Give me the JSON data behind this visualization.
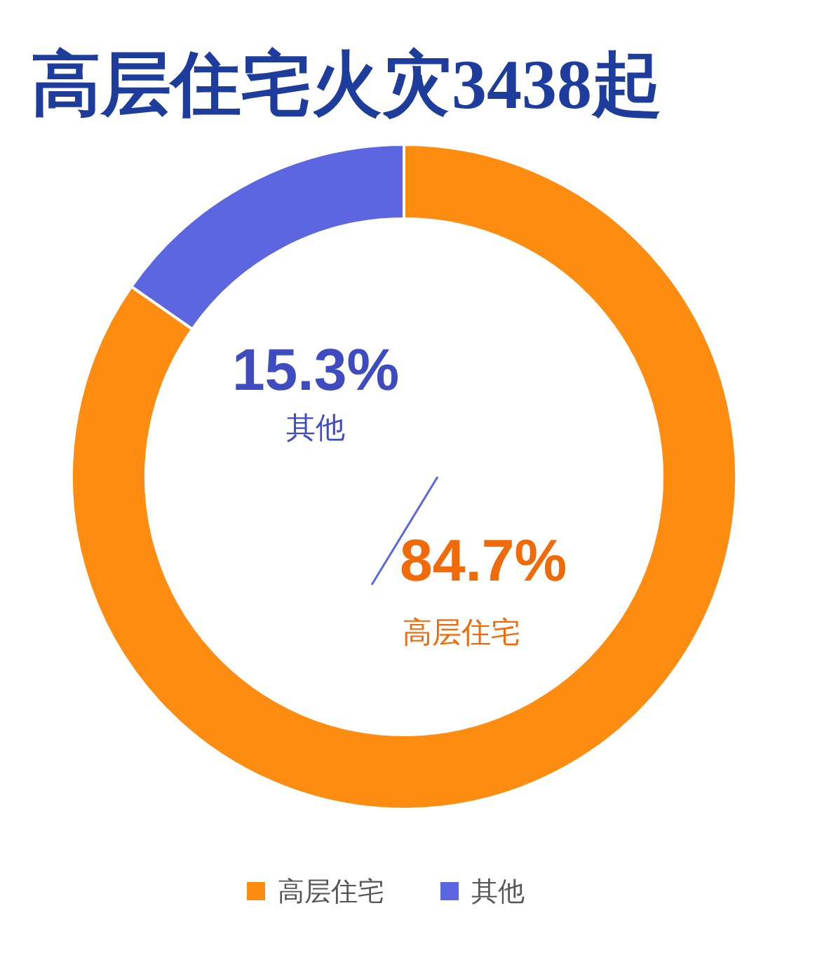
{
  "chart_data": {
    "type": "donut",
    "title": "高层住宅火灾3438起",
    "categories": [
      "高层住宅",
      "其他"
    ],
    "values": [
      84.7,
      15.3
    ],
    "colors": [
      "#fd8c10",
      "#5c66e0"
    ],
    "value_labels": [
      "84.7%",
      "15.3%"
    ],
    "legend": "bottom"
  }
}
